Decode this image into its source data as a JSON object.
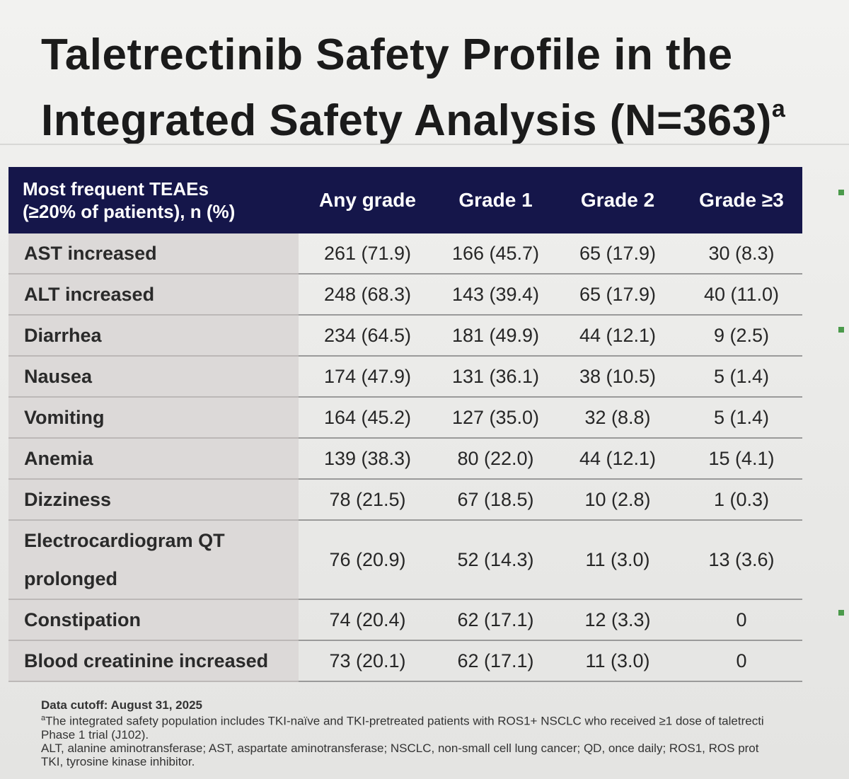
{
  "title": {
    "line1": "Taletrectinib Safety Profile in the",
    "line2": "Integrated Safety Analysis (N=363)",
    "superscript": "a"
  },
  "table": {
    "header": {
      "col0_line1": "Most frequent TEAEs",
      "col0_line2": "(≥20% of patients), n (%)",
      "col1": "Any grade",
      "col2": "Grade 1",
      "col3": "Grade 2",
      "col4": "Grade ≥3"
    },
    "rows": [
      {
        "label": "AST increased",
        "any": "261 (71.9)",
        "g1": "166 (45.7)",
        "g2": "65 (17.9)",
        "g3": "30 (8.3)"
      },
      {
        "label": "ALT increased",
        "any": "248 (68.3)",
        "g1": "143 (39.4)",
        "g2": "65 (17.9)",
        "g3": "40 (11.0)"
      },
      {
        "label": "Diarrhea",
        "any": "234 (64.5)",
        "g1": "181 (49.9)",
        "g2": "44 (12.1)",
        "g3": "9 (2.5)"
      },
      {
        "label": "Nausea",
        "any": "174 (47.9)",
        "g1": "131 (36.1)",
        "g2": "38 (10.5)",
        "g3": "5 (1.4)"
      },
      {
        "label": "Vomiting",
        "any": "164 (45.2)",
        "g1": "127 (35.0)",
        "g2": "32 (8.8)",
        "g3": "5 (1.4)"
      },
      {
        "label": "Anemia",
        "any": "139 (38.3)",
        "g1": "80 (22.0)",
        "g2": "44 (12.1)",
        "g3": "15 (4.1)"
      },
      {
        "label": "Dizziness",
        "any": "78 (21.5)",
        "g1": "67 (18.5)",
        "g2": "10 (2.8)",
        "g3": "1 (0.3)"
      },
      {
        "label_line1": "Electrocardiogram QT",
        "label_line2": "prolonged",
        "any": "76 (20.9)",
        "g1": "52 (14.3)",
        "g2": "11 (3.0)",
        "g3": "13 (3.6)"
      },
      {
        "label": "Constipation",
        "any": "74 (20.4)",
        "g1": "62 (17.1)",
        "g2": "12 (3.3)",
        "g3": "0"
      },
      {
        "label": "Blood creatinine increased",
        "any": "73 (20.1)",
        "g1": "62 (17.1)",
        "g2": "11 (3.0)",
        "g3": "0"
      }
    ]
  },
  "footnotes": {
    "cutoff": "Data cutoff: August 31, 2025",
    "note_a_marker": "a",
    "note_a": "The integrated safety population includes TKI-naïve and TKI-pretreated patients with ROS1+ NSCLC who received ≥1 dose of taletrecti",
    "note_a_line2": "Phase 1 trial (J102).",
    "abbrev1": "ALT, alanine aminotransferase; AST, aspartate aminotransferase; NSCLC, non-small cell lung cancer; QD, once daily; ROS1, ROS prot",
    "abbrev2": "TKI, tyrosine kinase inhibitor."
  },
  "colors": {
    "header_bg": "#15164a",
    "label_bg": "#dcd9d8",
    "page_bg": "#ececea"
  }
}
